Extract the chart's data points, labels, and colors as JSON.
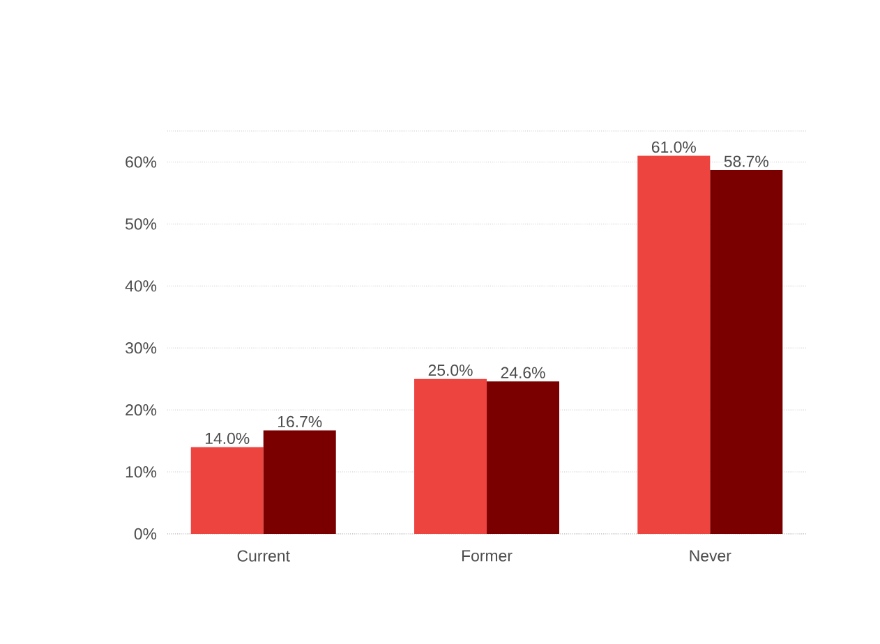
{
  "chart_data": {
    "type": "bar",
    "categories": [
      "Current",
      "Former",
      "Never"
    ],
    "series": [
      {
        "color": "#ee4440",
        "values": [
          14.0,
          25.0,
          61.0
        ],
        "value_labels": [
          "14.0%",
          "25.0%",
          "61.0%"
        ]
      },
      {
        "color": "#7a0000",
        "values": [
          16.7,
          24.6,
          58.7
        ],
        "value_labels": [
          "16.7%",
          "24.6%",
          "58.7%"
        ]
      }
    ],
    "ylim": [
      0,
      65
    ],
    "yticks": [
      {
        "value": 0,
        "label": "0%"
      },
      {
        "value": 10,
        "label": "10%"
      },
      {
        "value": 20,
        "label": "20%"
      },
      {
        "value": 30,
        "label": "30%"
      },
      {
        "value": 40,
        "label": "40%"
      },
      {
        "value": 50,
        "label": "50%"
      },
      {
        "value": 60,
        "label": "60%"
      }
    ],
    "grid": "y"
  }
}
